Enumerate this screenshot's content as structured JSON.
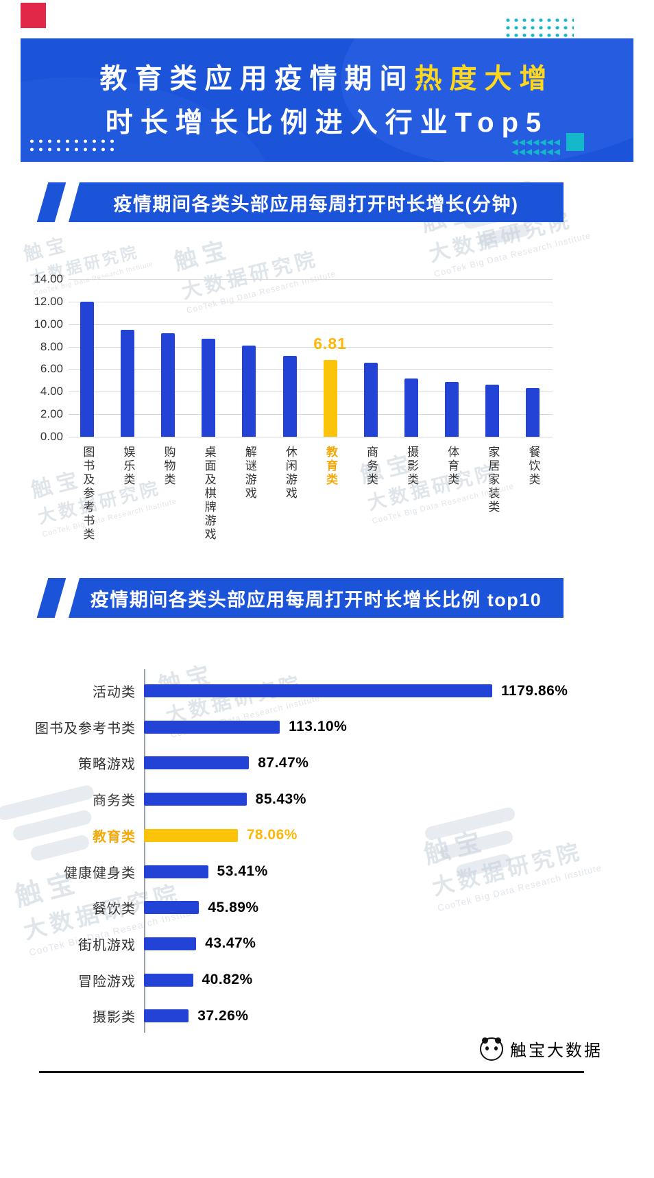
{
  "header": {
    "title_line1_white": "教育类应用疫情期间",
    "title_line1_highlight": "热度大增",
    "title_line2": "时长增长比例进入行业Top5"
  },
  "sections": {
    "chart1_title": "疫情期间各类头部应用每周打开时长增长(分钟)",
    "chart2_title": "疫情期间各类头部应用每周打开时长增长比例 top10"
  },
  "watermark": {
    "brand": "触宝",
    "org": "大数据研究院",
    "org_en": "CooTek Big Data Research Institute"
  },
  "footer": {
    "brand": "触宝大数据"
  },
  "decor": {
    "arrow_row": "◀◀◀◀◀◀◀"
  },
  "colors": {
    "banner_blue": "#1b54d9",
    "bar_blue": "#2342d6",
    "highlight_yellow": "#fcc30b",
    "title_yellow": "#ffd71c",
    "teal": "#14b8c8",
    "red": "#e12849"
  },
  "chart_data": [
    {
      "type": "bar",
      "title": "疫情期间各类头部应用每周打开时长增长(分钟)",
      "unit": "分钟",
      "categories": [
        "图书及参考书类",
        "娱乐类",
        "购物类",
        "桌面及棋牌游戏",
        "解谜游戏",
        "休闲游戏",
        "教育类",
        "商务类",
        "摄影类",
        "体育类",
        "家居家装类",
        "餐饮类"
      ],
      "values": [
        12.0,
        9.5,
        9.2,
        8.7,
        8.1,
        7.2,
        6.81,
        6.6,
        5.2,
        4.9,
        4.6,
        4.3
      ],
      "highlight_index": 6,
      "highlight_value_label": "6.81",
      "ylim": [
        0,
        14
      ],
      "y_ticks": [
        "14.00",
        "12.00",
        "10.00",
        "8.00",
        "6.00",
        "4.00",
        "2.00",
        "0.00"
      ],
      "grid": true,
      "legend": false
    },
    {
      "type": "bar",
      "orientation": "horizontal",
      "title": "疫情期间各类头部应用每周打开时长增长比例 top10",
      "categories": [
        "活动类",
        "图书及参考书类",
        "策略游戏",
        "商务类",
        "教育类",
        "健康健身类",
        "餐饮类",
        "街机游戏",
        "冒险游戏",
        "摄影类"
      ],
      "values": [
        1179.86,
        113.1,
        87.47,
        85.43,
        78.06,
        53.41,
        45.89,
        43.47,
        40.82,
        37.26
      ],
      "value_labels": [
        "1179.86%",
        "113.10%",
        "87.47%",
        "85.43%",
        "78.06%",
        "53.41%",
        "45.89%",
        "43.47%",
        "40.82%",
        "37.26%"
      ],
      "highlight_index": 4,
      "grid": false,
      "axis_note": "bar lengths visually compressed for values above 290%"
    }
  ]
}
